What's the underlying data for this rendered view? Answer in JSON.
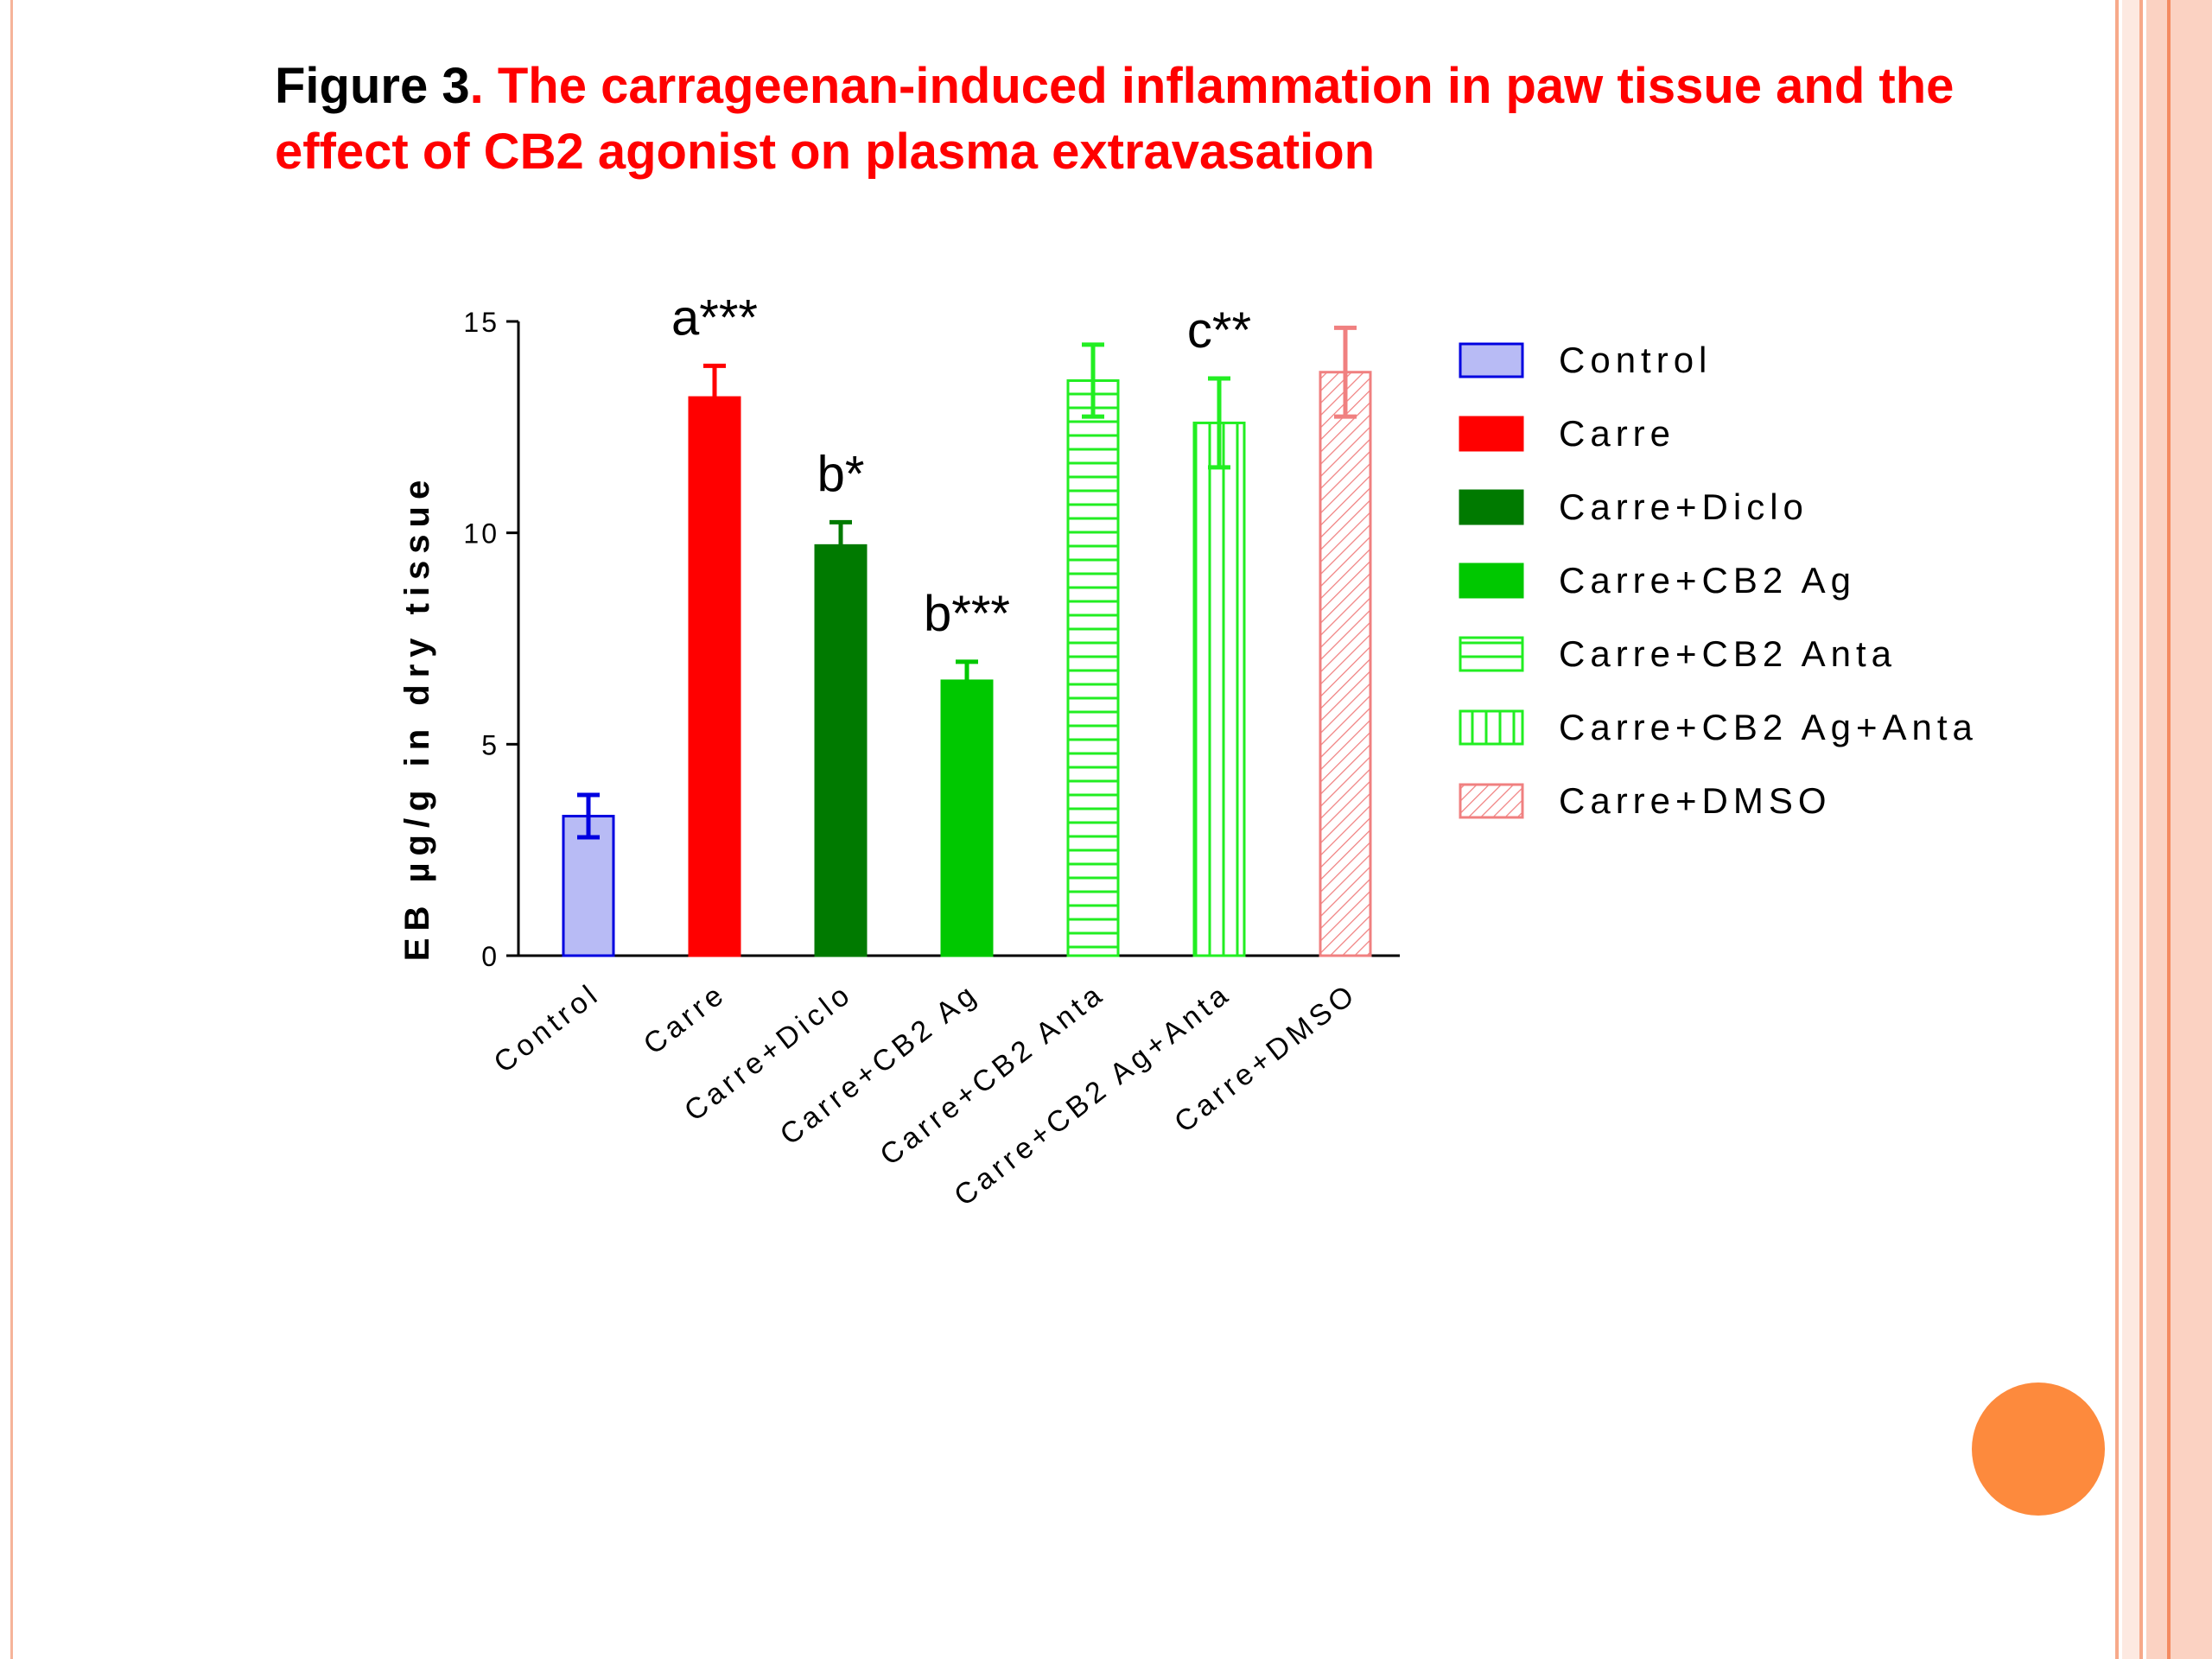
{
  "slide": {
    "title_lead": "Figure 3",
    "title_text": ". The carrageenan-induced inflammation in paw tissue and the effect of CB2 agonist on plasma extravasation",
    "colors": {
      "title_lead": "#000000",
      "title_text": "#ff0000",
      "accent_circle": "#fd8a3d",
      "border": "#f7a98a"
    }
  },
  "chart_data": {
    "type": "bar",
    "title": "",
    "xlabel": "",
    "ylabel": "EB µg/g in dry tissue",
    "ylim": [
      0,
      15
    ],
    "yticks": [
      0,
      5,
      10,
      15
    ],
    "grid": false,
    "legend_position": "right",
    "categories": [
      "Control",
      "Carre",
      "Carre+Diclo",
      "Carre+CB2 Ag",
      "Carre+CB2 Anta",
      "Carre+CB2 Ag+Anta",
      "Carre+DMSO"
    ],
    "values": [
      3.3,
      13.2,
      9.7,
      6.5,
      13.6,
      12.6,
      13.8
    ],
    "errors": [
      0.5,
      0.75,
      0.55,
      0.45,
      0.85,
      1.05,
      1.05
    ],
    "annotations": [
      "",
      "a***",
      "b*",
      "b***",
      "",
      "c**",
      ""
    ],
    "series_styles": [
      {
        "name": "Control",
        "fill": "#b8bbf5",
        "stroke": "#0000e0",
        "pattern": "solid"
      },
      {
        "name": "Carre",
        "fill": "#ff0000",
        "stroke": "#ff0000",
        "pattern": "solid"
      },
      {
        "name": "Carre+Diclo",
        "fill": "#007a00",
        "stroke": "#007a00",
        "pattern": "solid"
      },
      {
        "name": "Carre+CB2 Ag",
        "fill": "#00c800",
        "stroke": "#00c800",
        "pattern": "solid"
      },
      {
        "name": "Carre+CB2 Anta",
        "fill": "#ffffff",
        "stroke": "#22ee22",
        "pattern": "horizontal"
      },
      {
        "name": "Carre+CB2 Ag+Anta",
        "fill": "#ffffff",
        "stroke": "#22ee22",
        "pattern": "vertical"
      },
      {
        "name": "Carre+DMSO",
        "fill": "#ffffff",
        "stroke": "#f08080",
        "pattern": "diagonal"
      }
    ]
  }
}
